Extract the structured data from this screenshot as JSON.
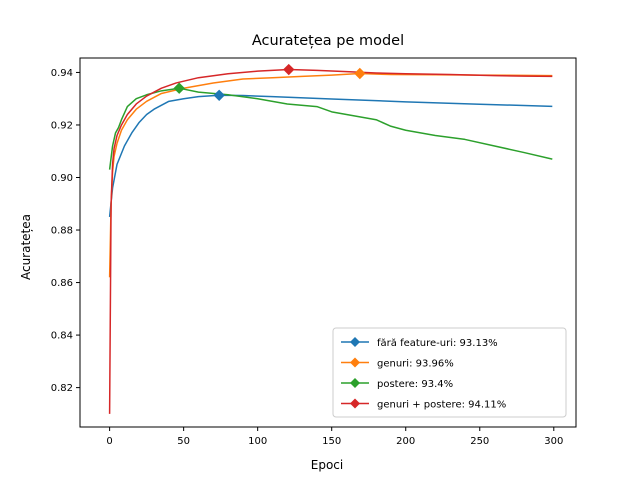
{
  "chart_data": {
    "type": "line",
    "title": "Acuratețea pe model",
    "xlabel": "Epoci",
    "ylabel": "Acuratețea",
    "xlim": [
      -20,
      315
    ],
    "ylim": [
      0.805,
      0.9455
    ],
    "xticks": [
      0,
      50,
      100,
      150,
      200,
      250,
      300
    ],
    "yticks": [
      0.82,
      0.84,
      0.86,
      0.88,
      0.9,
      0.92,
      0.94
    ],
    "ytick_labels": [
      "0.82",
      "0.84",
      "0.86",
      "0.88",
      "0.90",
      "0.92",
      "0.94"
    ],
    "grid": false,
    "legend_position": "lower-right",
    "series": [
      {
        "name": "fără feature-uri: 93.13%",
        "color": "#1f77b4",
        "marker_x": 74,
        "marker_y": 0.9313,
        "x": [
          0,
          2,
          5,
          10,
          15,
          20,
          25,
          30,
          40,
          50,
          60,
          74,
          90,
          110,
          150,
          200,
          250,
          299
        ],
        "y": [
          0.885,
          0.896,
          0.905,
          0.912,
          0.917,
          0.921,
          0.924,
          0.926,
          0.929,
          0.93,
          0.9308,
          0.9313,
          0.9312,
          0.9308,
          0.9299,
          0.9288,
          0.9279,
          0.9271
        ]
      },
      {
        "name": "genuri: 93.96%",
        "color": "#ff7f0e",
        "marker_x": 169,
        "marker_y": 0.9396,
        "x": [
          0,
          1,
          2,
          3,
          5,
          8,
          12,
          18,
          25,
          35,
          50,
          70,
          90,
          110,
          130,
          150,
          169,
          190,
          220,
          250,
          280,
          299
        ],
        "y": [
          0.862,
          0.89,
          0.902,
          0.908,
          0.913,
          0.918,
          0.922,
          0.926,
          0.929,
          0.932,
          0.934,
          0.936,
          0.9375,
          0.938,
          0.9385,
          0.939,
          0.9396,
          0.9392,
          0.9391,
          0.939,
          0.9389,
          0.9388
        ]
      },
      {
        "name": "postere: 93.4%",
        "color": "#2ca02c",
        "marker_x": 47,
        "marker_y": 0.934,
        "x": [
          0,
          2,
          4,
          6,
          8,
          12,
          18,
          25,
          35,
          47,
          60,
          80,
          100,
          120,
          140,
          150,
          160,
          170,
          180,
          190,
          200,
          220,
          240,
          260,
          280,
          299
        ],
        "y": [
          0.903,
          0.912,
          0.917,
          0.919,
          0.922,
          0.927,
          0.93,
          0.9315,
          0.933,
          0.934,
          0.9325,
          0.9315,
          0.93,
          0.928,
          0.927,
          0.925,
          0.924,
          0.923,
          0.922,
          0.9195,
          0.918,
          0.916,
          0.9145,
          0.912,
          0.9095,
          0.907
        ]
      },
      {
        "name": "genuri + postere: 94.11%",
        "color": "#d62728",
        "marker_x": 121,
        "marker_y": 0.9411,
        "x": [
          0,
          1,
          2,
          3,
          5,
          8,
          12,
          18,
          25,
          35,
          45,
          60,
          80,
          100,
          121,
          140,
          160,
          180,
          200,
          230,
          260,
          280,
          299
        ],
        "y": [
          0.81,
          0.89,
          0.905,
          0.911,
          0.916,
          0.92,
          0.924,
          0.928,
          0.931,
          0.934,
          0.936,
          0.938,
          0.9395,
          0.9405,
          0.9411,
          0.9408,
          0.9403,
          0.9398,
          0.9395,
          0.9392,
          0.9388,
          0.9386,
          0.9385
        ]
      }
    ]
  }
}
